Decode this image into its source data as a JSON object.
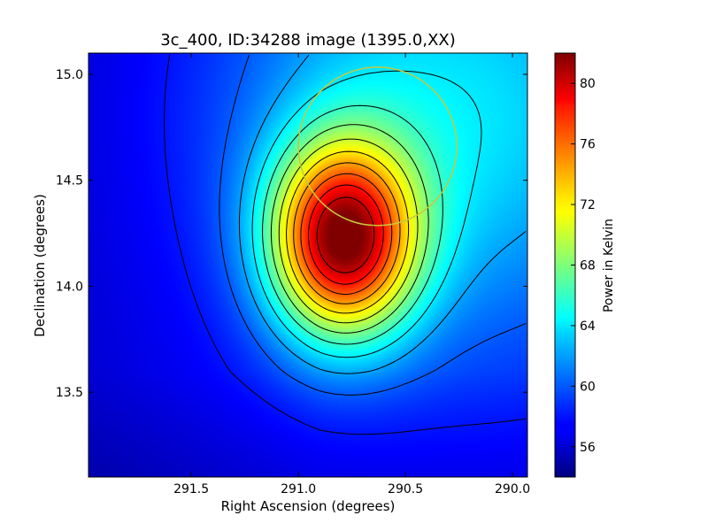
{
  "chart_data": {
    "type": "heatmap",
    "title": "3c_400, ID:34288 image (1395.0,XX)",
    "xlabel": "Right Ascension (degrees)",
    "ylabel": "Declination (degrees)",
    "colorbar_label": "Power in Kelvin",
    "xlim": [
      291.98,
      289.93
    ],
    "ylim": [
      13.1,
      15.1
    ],
    "x_inverted": true,
    "x_ticks": [
      291.5,
      291.0,
      290.5,
      290.0
    ],
    "x_tick_labels": [
      "291.5",
      "291.0",
      "290.5",
      "290.0"
    ],
    "y_ticks": [
      13.5,
      14.0,
      14.5,
      15.0
    ],
    "y_tick_labels": [
      "13.5",
      "14.0",
      "14.5",
      "15.0"
    ],
    "colorbar_range": [
      54,
      82
    ],
    "colorbar_ticks": [
      56,
      60,
      64,
      68,
      72,
      76,
      80
    ],
    "colorbar_tick_labels": [
      "56",
      "60",
      "64",
      "68",
      "72",
      "76",
      "80"
    ],
    "colormap": "jet",
    "peak": {
      "ra": 290.79,
      "dec": 14.22,
      "value": 82.0
    },
    "contour_color": "#000000",
    "annotation_circle": {
      "ra": 290.63,
      "dec": 14.66,
      "radius_deg": 0.37,
      "color": "#c8c83c"
    },
    "grid": false
  }
}
